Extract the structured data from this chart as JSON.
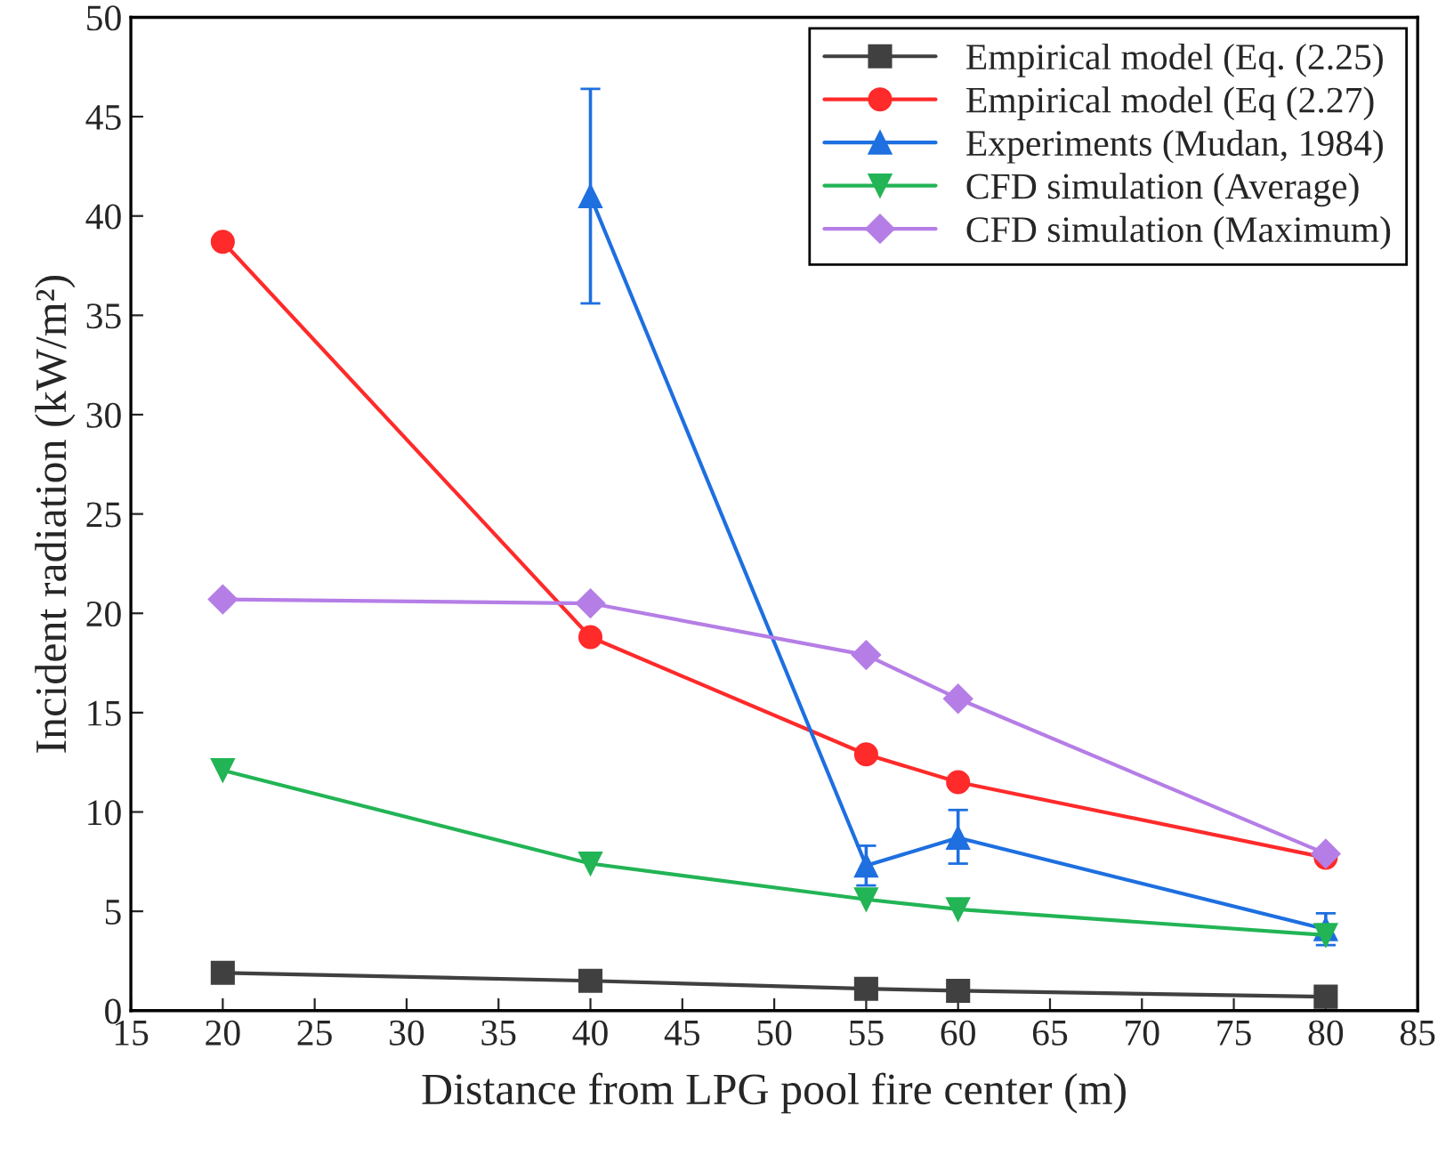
{
  "chart_data": {
    "type": "line",
    "xlabel": "Distance from LPG pool fire center (m)",
    "ylabel": "Incident radiation (kW/m²)",
    "x": [
      20,
      40,
      55,
      60,
      80
    ],
    "series": [
      {
        "name": "Empirical model (Eq. (2.25)",
        "color": "#404040",
        "marker": "square",
        "values": [
          1.9,
          1.5,
          1.1,
          1.0,
          0.7
        ]
      },
      {
        "name": "Empirical model (Eq (2.27)",
        "color": "#ff2a2a",
        "marker": "circle",
        "values": [
          38.7,
          18.8,
          12.9,
          11.5,
          7.7
        ]
      },
      {
        "name": "Experiments (Mudan, 1984)",
        "color": "#1e6fe0",
        "marker": "triangle",
        "values": [
          null,
          41.0,
          7.3,
          8.7,
          4.1
        ],
        "errors": [
          null,
          [
            35.6,
            46.4
          ],
          [
            6.3,
            8.3
          ],
          [
            7.4,
            10.1
          ],
          [
            3.3,
            4.9
          ]
        ]
      },
      {
        "name": "CFD simulation (Average)",
        "color": "#22b455",
        "marker": "triangle_down",
        "values": [
          12.1,
          7.4,
          5.6,
          5.1,
          3.8
        ]
      },
      {
        "name": "CFD simulation (Maximum)",
        "color": "#b57ee6",
        "marker": "diamond",
        "values": [
          20.7,
          20.5,
          17.9,
          15.7,
          7.9
        ]
      }
    ],
    "xlim": [
      15,
      85
    ],
    "xticks": [
      15,
      20,
      25,
      30,
      35,
      40,
      45,
      50,
      55,
      60,
      65,
      70,
      75,
      80,
      85
    ],
    "ylim": [
      0,
      50
    ],
    "yticks": [
      0,
      5,
      10,
      15,
      20,
      25,
      30,
      35,
      40,
      45,
      50
    ],
    "grid": false,
    "legend": "top right",
    "line_style": "solid"
  }
}
